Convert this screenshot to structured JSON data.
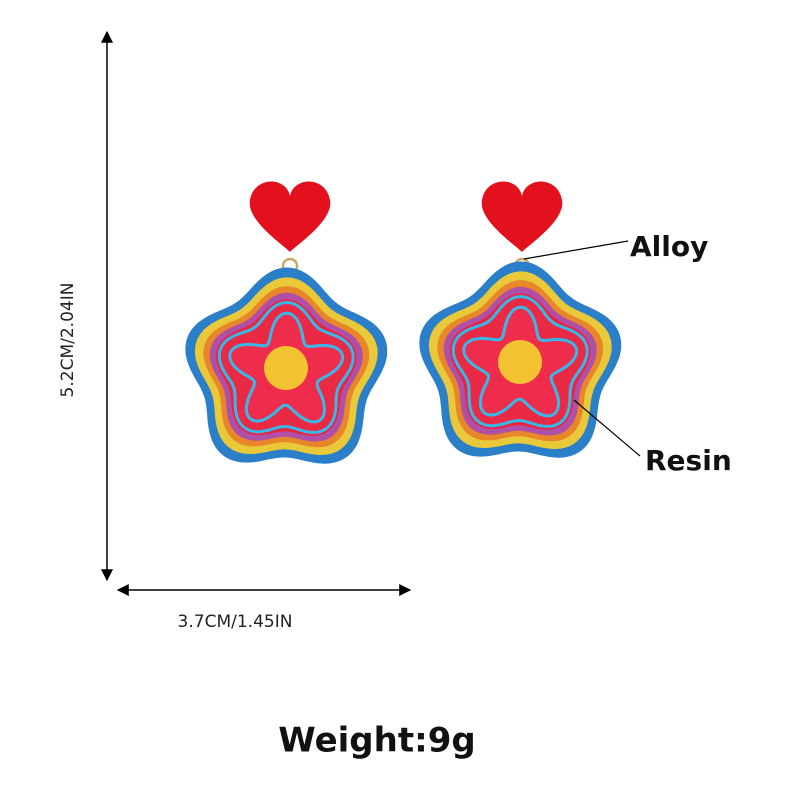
{
  "dimensions": {
    "height": "5.2CM/2.04IN",
    "width": "3.7CM/1.45IN"
  },
  "callouts": {
    "top": "Alloy",
    "body": "Resin"
  },
  "weight": "Weight:9g"
}
